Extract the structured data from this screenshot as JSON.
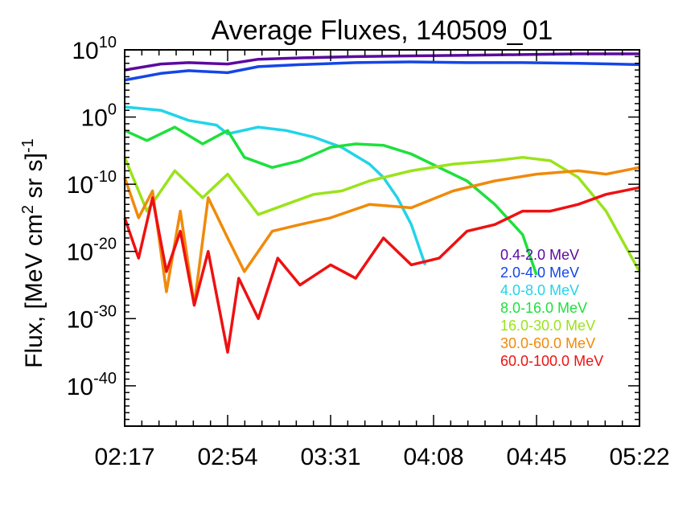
{
  "chart_data": {
    "type": "line",
    "title": "Average Fluxes, 140509_01",
    "xlabel": "",
    "ylabel": "Flux, [MeV cm2 sr s]-1",
    "ylabel_parts": {
      "a": "Flux, [MeV cm",
      "b": "2",
      "c": " sr s]",
      "d": "-1"
    },
    "y_scale": "log",
    "ylim_exponent": [
      -46,
      10
    ],
    "y_ticks": [
      {
        "base": "10",
        "exp": "10",
        "value_exp": 10
      },
      {
        "base": "10",
        "exp": "0",
        "value_exp": 0
      },
      {
        "base": "10",
        "exp": "-10",
        "value_exp": -10
      },
      {
        "base": "10",
        "exp": "-20",
        "value_exp": -20
      },
      {
        "base": "10",
        "exp": "-30",
        "value_exp": -30
      },
      {
        "base": "10",
        "exp": "-40",
        "value_exp": -40
      }
    ],
    "x_ticks": [
      "02:17",
      "02:54",
      "03:31",
      "04:08",
      "04:45",
      "05:22"
    ],
    "xlim": [
      "02:17",
      "05:22"
    ],
    "grid": false,
    "legend_position": "right",
    "series": [
      {
        "name": "0.4-2.0 MeV",
        "color": "#5b0aa0",
        "x": [
          "02:17",
          "02:30",
          "02:40",
          "02:54",
          "03:05",
          "03:20",
          "03:40",
          "04:00",
          "04:20",
          "04:40",
          "05:00",
          "05:22"
        ],
        "y_exp": [
          7.0,
          7.9,
          8.1,
          7.9,
          8.6,
          8.8,
          9.0,
          9.1,
          9.2,
          9.3,
          9.4,
          9.4
        ]
      },
      {
        "name": "2.0-4.0 MeV",
        "color": "#1446e6",
        "x": [
          "02:17",
          "02:30",
          "02:40",
          "02:54",
          "03:05",
          "03:20",
          "03:40",
          "04:00",
          "04:20",
          "04:40",
          "05:00",
          "05:22"
        ],
        "y_exp": [
          5.5,
          6.5,
          6.9,
          6.6,
          7.5,
          7.8,
          8.1,
          8.2,
          8.1,
          8.1,
          8.0,
          7.8
        ]
      },
      {
        "name": "4.0-8.0 MeV",
        "color": "#22d4e8",
        "x": [
          "02:17",
          "02:30",
          "02:40",
          "02:50",
          "02:54",
          "03:05",
          "03:15",
          "03:25",
          "03:35",
          "03:45",
          "03:50",
          "03:55",
          "04:00",
          "04:05"
        ],
        "y_exp": [
          1.5,
          1.0,
          -0.5,
          -1.2,
          -2.5,
          -1.5,
          -2.0,
          -3.0,
          -4.5,
          -7.0,
          -9.0,
          -12.0,
          -16.0,
          -22.0
        ]
      },
      {
        "name": "8.0-16.0 MeV",
        "color": "#1ee03c",
        "x": [
          "02:17",
          "02:25",
          "02:35",
          "02:45",
          "02:54",
          "03:00",
          "03:10",
          "03:20",
          "03:31",
          "03:40",
          "03:50",
          "04:00",
          "04:10",
          "04:20",
          "04:30",
          "04:40",
          "04:45"
        ],
        "y_exp": [
          -2.0,
          -3.5,
          -1.5,
          -4.0,
          -2.0,
          -6.0,
          -7.5,
          -6.5,
          -4.5,
          -4.0,
          -4.2,
          -5.5,
          -7.5,
          -9.5,
          -13.0,
          -17.5,
          -23.5
        ]
      },
      {
        "name": "16.0-30.0 MeV",
        "color": "#9ae31a",
        "x": [
          "02:17",
          "02:25",
          "02:35",
          "02:45",
          "02:54",
          "03:05",
          "03:15",
          "03:25",
          "03:35",
          "03:45",
          "04:00",
          "04:15",
          "04:30",
          "04:40",
          "04:50",
          "05:00",
          "05:10",
          "05:22"
        ],
        "y_exp": [
          -6.0,
          -14.0,
          -8.0,
          -12.0,
          -8.5,
          -14.5,
          -13.0,
          -11.5,
          -11.0,
          -9.5,
          -8.0,
          -7.0,
          -6.5,
          -6.0,
          -6.5,
          -9.0,
          -14.0,
          -23.0
        ]
      },
      {
        "name": "30.0-60.0 MeV",
        "color": "#f08a0a",
        "x": [
          "02:17",
          "02:22",
          "02:27",
          "02:32",
          "02:37",
          "02:42",
          "02:47",
          "02:54",
          "03:00",
          "03:10",
          "03:20",
          "03:31",
          "03:45",
          "04:00",
          "04:15",
          "04:30",
          "04:45",
          "05:00",
          "05:10",
          "05:22"
        ],
        "y_exp": [
          -9.0,
          -15.0,
          -11.0,
          -26.0,
          -14.0,
          -28.0,
          -12.0,
          -18.0,
          -23.0,
          -17.0,
          -16.0,
          -15.0,
          -13.0,
          -13.5,
          -11.0,
          -9.5,
          -8.5,
          -8.0,
          -8.5,
          -7.5
        ]
      },
      {
        "name": "60.0-100.0 MeV",
        "color": "#ee1111",
        "x": [
          "02:17",
          "02:22",
          "02:27",
          "02:32",
          "02:37",
          "02:42",
          "02:47",
          "02:54",
          "02:58",
          "03:05",
          "03:12",
          "03:20",
          "03:31",
          "03:40",
          "03:50",
          "04:00",
          "04:10",
          "04:20",
          "04:30",
          "04:40",
          "04:50",
          "05:00",
          "05:10",
          "05:22"
        ],
        "y_exp": [
          -15.0,
          -21.0,
          -12.0,
          -23.0,
          -17.0,
          -28.0,
          -20.0,
          -35.0,
          -24.0,
          -30.0,
          -21.0,
          -25.0,
          -22.0,
          -24.0,
          -18.0,
          -22.0,
          -21.0,
          -17.0,
          -16.0,
          -14.0,
          -14.0,
          -13.0,
          -11.5,
          -10.5
        ]
      }
    ]
  }
}
